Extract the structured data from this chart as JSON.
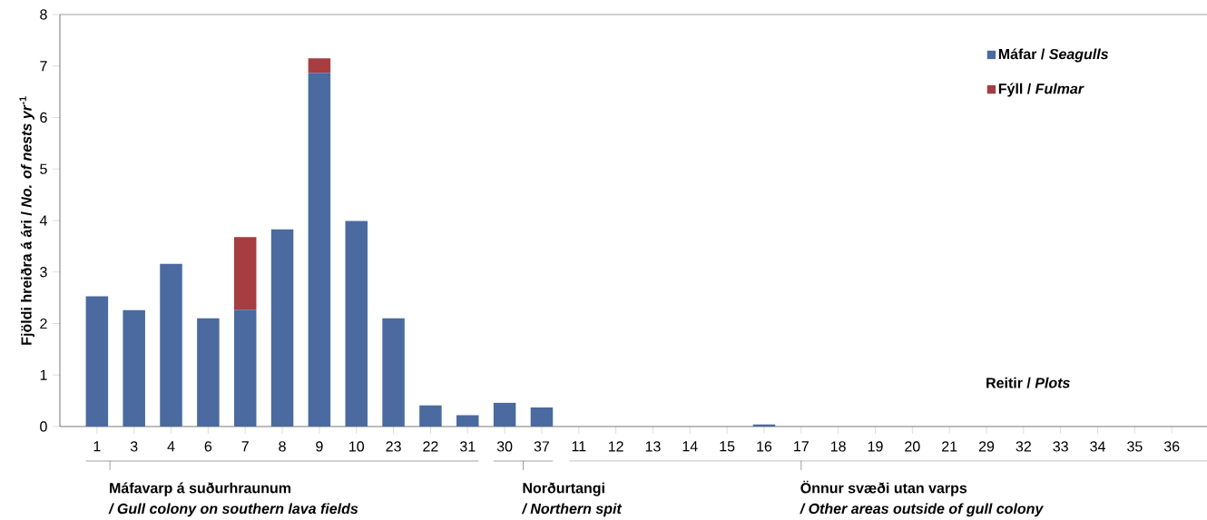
{
  "chart_data": {
    "type": "bar",
    "stacked": true,
    "ylabel": "Fjöldi hreiðra á ári / *No. of nests yr*$^{-1}$",
    "xlabel": "Reitir / *Plots*",
    "categories": [
      "1",
      "3",
      "4",
      "6",
      "7",
      "8",
      "9",
      "10",
      "23",
      "22",
      "31",
      "30",
      "37",
      "11",
      "12",
      "13",
      "14",
      "15",
      "16",
      "17",
      "18",
      "19",
      "20",
      "21",
      "29",
      "32",
      "33",
      "34",
      "35",
      "36"
    ],
    "series": [
      {
        "name": "Máfar / *Seagulls*",
        "color": "#4a6aa0",
        "values": [
          2.53,
          2.26,
          3.16,
          2.1,
          2.27,
          3.83,
          6.87,
          3.99,
          2.1,
          0.41,
          0.22,
          0.46,
          0.37,
          0,
          0,
          0,
          0,
          0,
          0.04,
          0,
          0,
          0,
          0,
          0,
          0,
          0,
          0,
          0,
          0,
          0
        ]
      },
      {
        "name": "Fýll / *Fulmar*",
        "color": "#a63d40",
        "values": [
          0,
          0,
          0,
          0,
          1.41,
          0,
          0.28,
          0,
          0,
          0,
          0,
          0,
          0,
          0,
          0,
          0,
          0,
          0,
          0,
          0,
          0,
          0,
          0,
          0,
          0,
          0,
          0,
          0,
          0,
          0
        ]
      }
    ],
    "ylim": [
      0,
      8
    ],
    "yticks": [
      0,
      1,
      2,
      3,
      4,
      5,
      6,
      7,
      8
    ],
    "legend": "top right",
    "annotations": [
      "Máfavarp á suðurhraunum",
      "/ Gull colony on southern lava fields",
      "Norðurtangi",
      "/ Northern spit",
      "Önnur svæði utan varps",
      "/ Other areas outside of gull colony"
    ]
  }
}
